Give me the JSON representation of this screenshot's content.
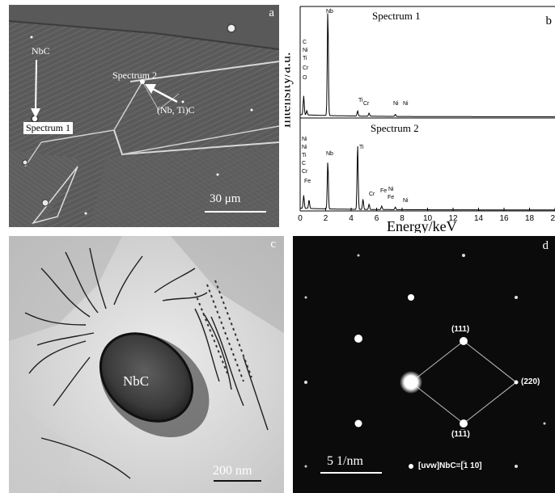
{
  "panel_a": {
    "label": "a",
    "nbc_label": "NbC",
    "spectrum1_label": "Spectrum 1",
    "spectrum2_label": "Spectrum 2",
    "nbti_label": "(Nb, Ti)C",
    "scale_bar": "30 μm"
  },
  "panel_b": {
    "label": "b",
    "ylabel": "Intensity/a.u.",
    "xlabel": "Energy/keV",
    "spectrum1_title": "Spectrum 1",
    "spectrum2_title": "Spectrum 2"
  },
  "panel_c": {
    "label": "c",
    "particle_label": "NbC",
    "scale_bar": "200 nm"
  },
  "panel_d": {
    "label": "d",
    "spot_111": "(111)",
    "spot_220": "(220)",
    "spot_11m1": "(11̅1)",
    "scale_bar": "5 1/nm",
    "zone_axis": "[uvw]NbC=[̅1 10]"
  },
  "chart_data": {
    "type": "line",
    "xlabel": "Energy/keV",
    "ylabel": "Intensity/a.u.",
    "xlim": [
      0,
      20
    ],
    "x_ticks": [
      0,
      2,
      4,
      6,
      8,
      10,
      12,
      14,
      16,
      18,
      20
    ],
    "series": [
      {
        "name": "Spectrum 1",
        "peaks": [
          {
            "element": "C",
            "x": 0.28,
            "y": 0.18
          },
          {
            "element": "O",
            "x": 0.52,
            "y": 0.04
          },
          {
            "element": "Nb",
            "x": 2.17,
            "y": 1.0
          },
          {
            "element": "Ti",
            "x": 4.51,
            "y": 0.05
          },
          {
            "element": "Cr",
            "x": 5.41,
            "y": 0.03
          },
          {
            "element": "Ni",
            "x": 7.47,
            "y": 0.02
          }
        ],
        "element_labels": [
          "C",
          "Ni",
          "Ti",
          "Cr",
          "O",
          "Nb",
          "Ti",
          "Cr",
          "Ni",
          "Ni"
        ]
      },
      {
        "name": "Spectrum 2",
        "peaks": [
          {
            "element": "C",
            "x": 0.28,
            "y": 0.15
          },
          {
            "element": "Fe",
            "x": 0.7,
            "y": 0.1
          },
          {
            "element": "Nb",
            "x": 2.17,
            "y": 0.55
          },
          {
            "element": "Ti",
            "x": 4.51,
            "y": 0.75
          },
          {
            "element": "Ti",
            "x": 4.93,
            "y": 0.12
          },
          {
            "element": "Cr",
            "x": 5.41,
            "y": 0.06
          },
          {
            "element": "Fe",
            "x": 6.4,
            "y": 0.04
          },
          {
            "element": "Ni",
            "x": 7.47,
            "y": 0.03
          }
        ],
        "element_labels": [
          "Ni",
          "Ni",
          "Ti",
          "C",
          "Cr",
          "Fe",
          "Nb",
          "Ti",
          "Cr",
          "Fe",
          "Ni",
          "Fe",
          "Ni"
        ]
      }
    ]
  }
}
